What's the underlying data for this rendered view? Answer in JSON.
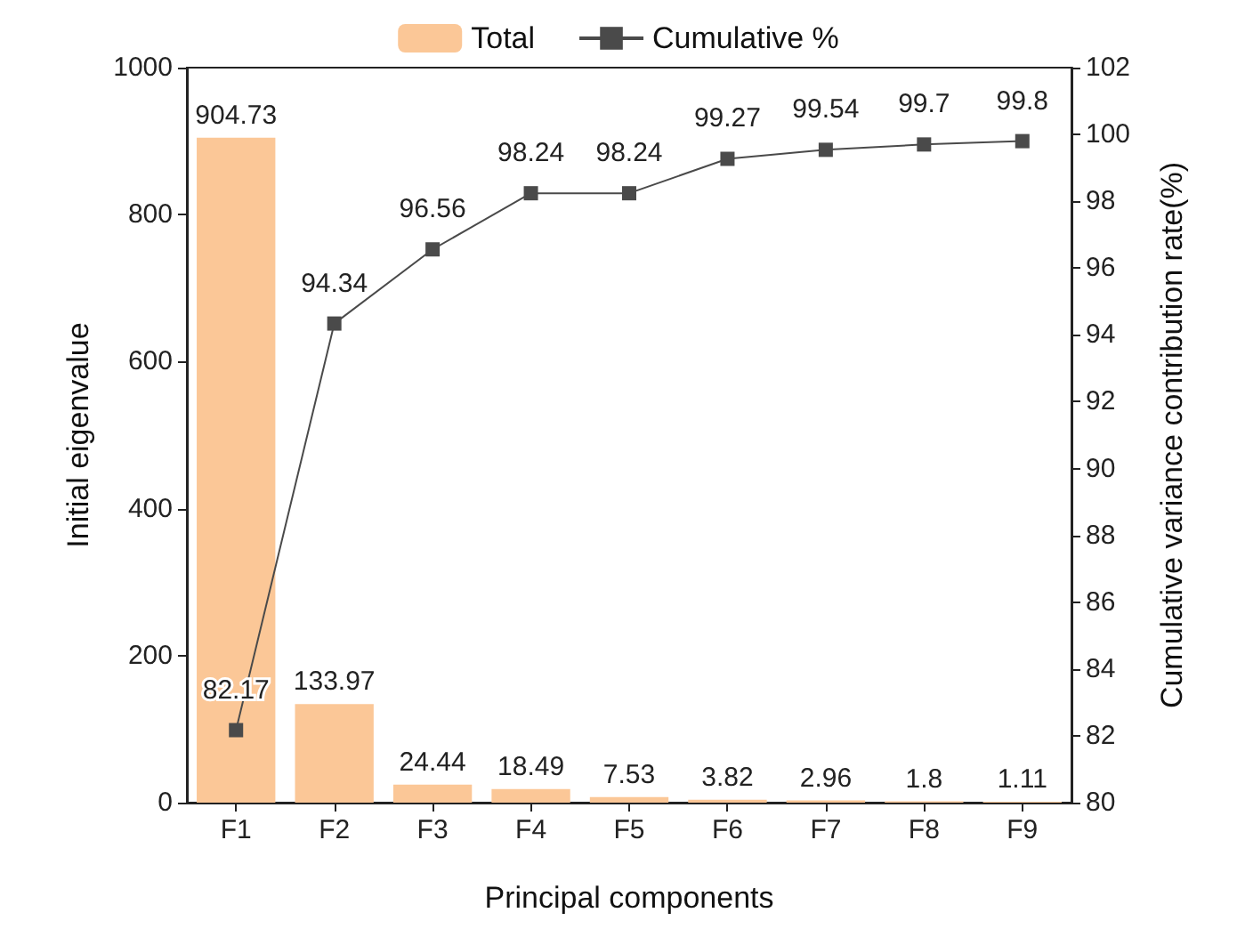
{
  "chart_data": {
    "type": "bar",
    "xlabel": "Principal components",
    "ylabel": "Initial eigenvalue",
    "y2label": "Cumulative variance contribution rate(%)",
    "categories": [
      "F1",
      "F2",
      "F3",
      "F4",
      "F5",
      "F6",
      "F7",
      "F8",
      "F9"
    ],
    "series": [
      {
        "name": "Total",
        "color": "#fbc797",
        "values": [
          904.73,
          133.97,
          24.44,
          18.49,
          7.53,
          3.82,
          2.96,
          1.8,
          1.11
        ]
      },
      {
        "name": "Cumulative %",
        "type": "line",
        "axis": "y2",
        "color": "#4a4a4a",
        "values": [
          82.17,
          94.34,
          96.56,
          98.24,
          98.24,
          99.27,
          99.54,
          99.7,
          99.8
        ]
      }
    ],
    "ylim": [
      0,
      1000
    ],
    "yticks": [
      0,
      200,
      400,
      600,
      800,
      1000
    ],
    "y2lim": [
      80,
      102
    ],
    "y2ticks": [
      80,
      82,
      84,
      86,
      88,
      90,
      92,
      94,
      96,
      98,
      100,
      102
    ],
    "data_labels": true,
    "legend": "top",
    "marker": "square",
    "line_style": "solid",
    "grid": false
  }
}
